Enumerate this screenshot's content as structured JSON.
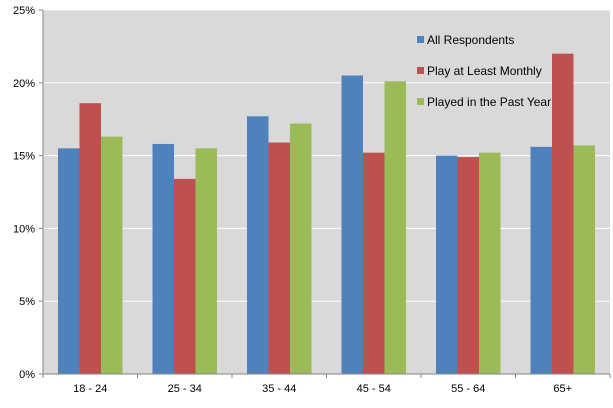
{
  "chart_data": {
    "type": "bar",
    "categories": [
      "18 - 24",
      "25 - 34",
      "35 - 44",
      "45 - 54",
      "55 - 64",
      "65+"
    ],
    "series": [
      {
        "name": "All Respondents",
        "color": "#4F81BD",
        "values": [
          15.5,
          15.8,
          17.7,
          20.5,
          15.0,
          15.6
        ]
      },
      {
        "name": "Play at Least Monthly",
        "color": "#C0504D",
        "values": [
          18.6,
          13.4,
          15.9,
          15.2,
          14.9,
          22.0
        ]
      },
      {
        "name": "Played in the Past Year",
        "color": "#9BBB59",
        "values": [
          16.3,
          15.5,
          17.2,
          20.1,
          15.2,
          15.7
        ]
      }
    ],
    "ylim": [
      0,
      25
    ],
    "yticks": [
      "0%",
      "5%",
      "10%",
      "15%",
      "20%",
      "25%"
    ],
    "ytick_values": [
      0,
      5,
      10,
      15,
      20,
      25
    ],
    "grid": true,
    "legend_position": "top-right inside plot",
    "plot_background": "#D9D9D9",
    "gridline_color": "#FFFFFF"
  }
}
